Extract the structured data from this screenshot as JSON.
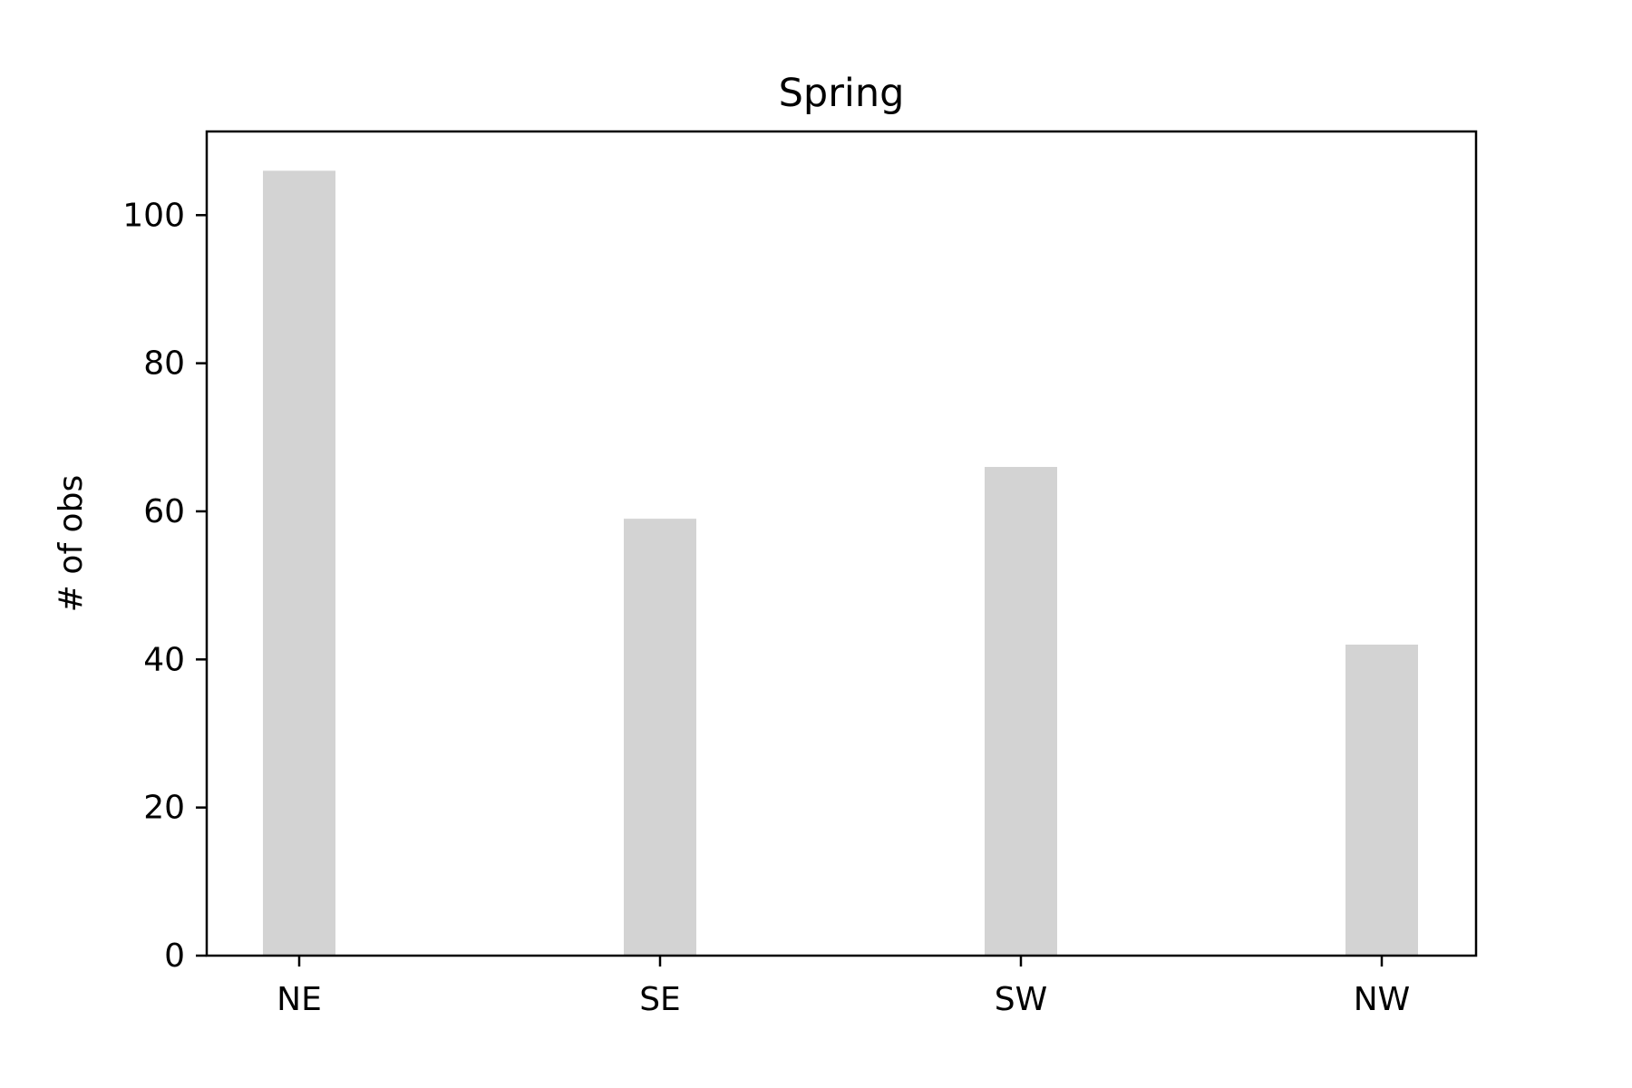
{
  "chart_data": {
    "type": "bar",
    "title": "Spring",
    "xlabel": "",
    "ylabel": "# of obs",
    "categories": [
      "NE",
      "SE",
      "SW",
      "NW"
    ],
    "values": [
      106,
      59,
      66,
      42
    ],
    "ylim": [
      0,
      111.3
    ],
    "yticks": [
      "0",
      "20",
      "40",
      "60",
      "80",
      "100"
    ],
    "grid": false,
    "legend": "none",
    "bar_color": "#d3d3d3"
  }
}
